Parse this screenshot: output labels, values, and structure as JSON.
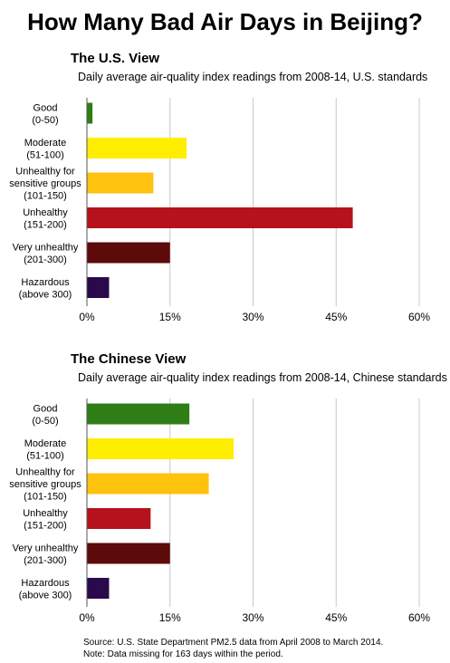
{
  "title": "How Many Bad Air Days in Beijing?",
  "source": {
    "line1": "Source: U.S. State Department PM2.5 data from April 2008 to March 2014.",
    "line2": "Note: Data missing for 163 days within the period."
  },
  "chart_data": [
    {
      "type": "bar",
      "orientation": "horizontal",
      "title": "The U.S. View",
      "subtitle": "Daily average air-quality index readings from 2008-14, U.S. standards",
      "categories": [
        [
          "Good",
          "(0-50)"
        ],
        [
          "Moderate",
          "(51-100)"
        ],
        [
          "Unhealthy for",
          "sensitive groups",
          "(101-150)"
        ],
        [
          "Unhealthy",
          "(151-200)"
        ],
        [
          "Very unhealthy",
          "(201-300)"
        ],
        [
          "Hazardous",
          "(above 300)"
        ]
      ],
      "values": [
        1,
        18,
        12,
        48,
        15,
        4
      ],
      "colors": [
        "#2e7d16",
        "#ffee00",
        "#ffc20e",
        "#b5121b",
        "#5c0a0a",
        "#2a0a4a"
      ],
      "xlim": [
        0,
        60
      ],
      "xticks": [
        "0%",
        "15%",
        "30%",
        "45%",
        "60%"
      ],
      "grid": true
    },
    {
      "type": "bar",
      "orientation": "horizontal",
      "title": "The Chinese View",
      "subtitle": "Daily average air-quality index readings from 2008-14, Chinese standards",
      "categories": [
        [
          "Good",
          "(0-50)"
        ],
        [
          "Moderate",
          "(51-100)"
        ],
        [
          "Unhealthy for",
          "sensitive groups",
          "(101-150)"
        ],
        [
          "Unhealthy",
          "(151-200)"
        ],
        [
          "Very unhealthy",
          "(201-300)"
        ],
        [
          "Hazardous",
          "(above 300)"
        ]
      ],
      "values": [
        18.5,
        26.5,
        22,
        11.5,
        15,
        4
      ],
      "colors": [
        "#2e7d16",
        "#ffee00",
        "#ffc20e",
        "#b5121b",
        "#5c0a0a",
        "#2a0a4a"
      ],
      "xlim": [
        0,
        60
      ],
      "xticks": [
        "0%",
        "15%",
        "30%",
        "45%",
        "60%"
      ],
      "grid": true
    }
  ]
}
